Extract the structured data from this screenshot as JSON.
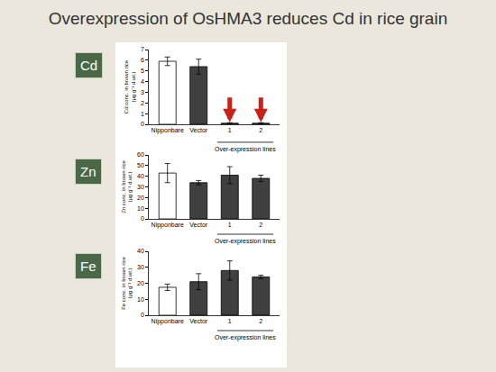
{
  "heading": "Overexpression of OsHMA3 reduces Cd in rice grain",
  "chart_data": [
    {
      "type": "bar",
      "title": "Cd",
      "categories": [
        "Nipponbare",
        "Vector",
        "1",
        "2"
      ],
      "values": [
        5.9,
        5.4,
        0.1,
        0.1
      ],
      "errors": [
        0.4,
        0.7,
        0.05,
        0.05
      ],
      "colors": [
        "#ffffff",
        "#404040",
        "#404040",
        "#404040"
      ],
      "y_label": "Cd conc. in brown rice (µg g⁻¹ d.wt.)",
      "annotations": [
        "Over-expression lines"
      ],
      "ylim": [
        0,
        7
      ],
      "yticks": [
        0,
        1,
        2,
        3,
        4,
        5,
        6,
        7
      ]
    },
    {
      "type": "bar",
      "title": "Zn",
      "categories": [
        "Nipponbare",
        "Vector",
        "1",
        "2"
      ],
      "values": [
        43,
        34,
        41,
        38
      ],
      "errors": [
        9,
        2,
        8,
        3
      ],
      "colors": [
        "#ffffff",
        "#404040",
        "#404040",
        "#404040"
      ],
      "y_label": "Zn conc. in brown rice (µg g⁻¹ d.wt.)",
      "annotations": [
        "Over-expression lines"
      ],
      "ylim": [
        0,
        60
      ],
      "yticks": [
        0,
        10,
        20,
        30,
        40,
        50,
        60
      ]
    },
    {
      "type": "bar",
      "title": "Fe",
      "categories": [
        "Nipponbare",
        "Vector",
        "1",
        "2"
      ],
      "values": [
        17.5,
        21,
        28,
        24
      ],
      "errors": [
        2,
        5,
        6,
        1
      ],
      "colors": [
        "#ffffff",
        "#404040",
        "#404040",
        "#404040"
      ],
      "y_label": "Fe conc. in brown rice (µg g⁻¹ d.wt.)",
      "annotations": [
        "Over-expression lines"
      ],
      "ylim": [
        0,
        40
      ],
      "yticks": [
        0,
        10,
        20,
        30,
        40
      ]
    }
  ]
}
